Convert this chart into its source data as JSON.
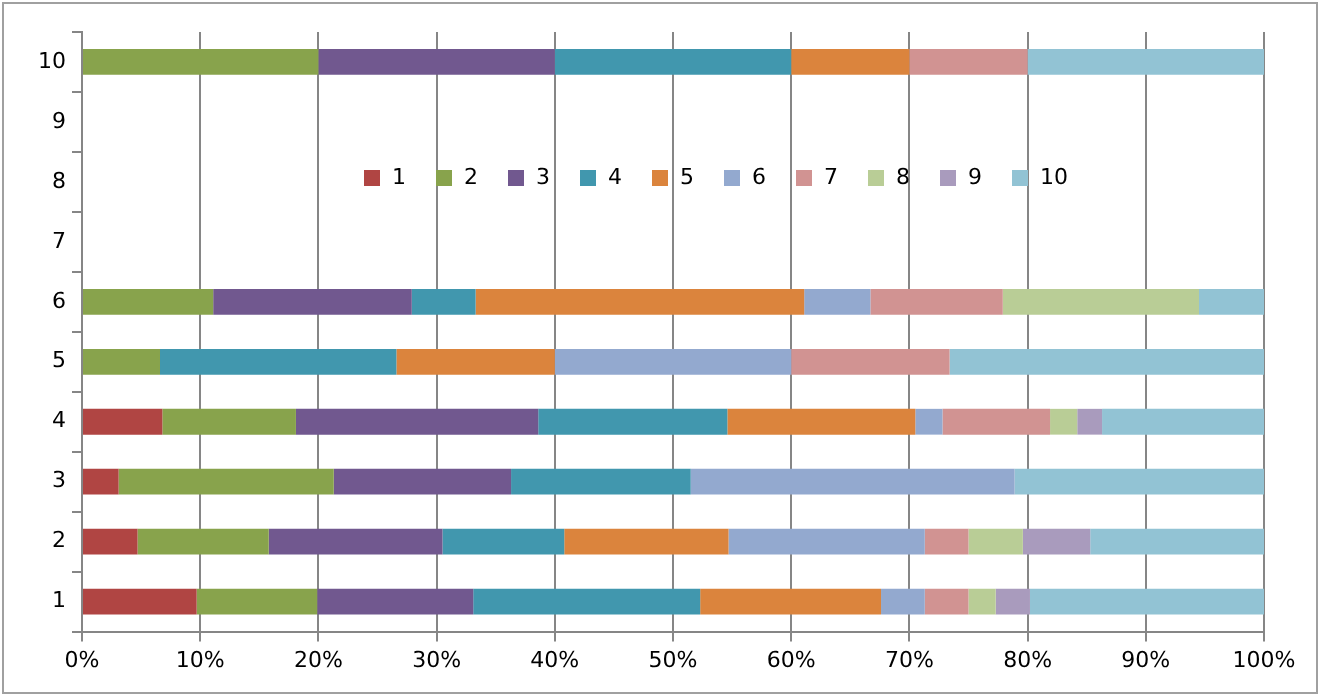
{
  "chart_data": {
    "type": "bar",
    "orientation": "horizontal",
    "stacked": true,
    "categories": [
      "10",
      "9",
      "8",
      "7",
      "6",
      "5",
      "4",
      "3",
      "2",
      "1"
    ],
    "series": [
      {
        "name": "1",
        "color": "#b04543",
        "values": [
          0,
          null,
          null,
          null,
          0,
          0,
          6.8,
          3.1,
          4.7,
          9.7
        ]
      },
      {
        "name": "2",
        "color": "#88a34c",
        "values": [
          20,
          null,
          null,
          null,
          11.1,
          6.6,
          11.3,
          18.2,
          11.1,
          10.2
        ]
      },
      {
        "name": "3",
        "color": "#71588f",
        "values": [
          20,
          null,
          null,
          null,
          16.8,
          0,
          20.5,
          15.0,
          14.7,
          13.2
        ]
      },
      {
        "name": "4",
        "color": "#4197ae",
        "values": [
          20,
          null,
          null,
          null,
          5.4,
          20.0,
          16.0,
          15.2,
          10.3,
          19.2
        ]
      },
      {
        "name": "5",
        "color": "#db843d",
        "values": [
          10,
          null,
          null,
          null,
          27.8,
          13.4,
          15.9,
          0,
          13.9,
          15.3
        ]
      },
      {
        "name": "6",
        "color": "#93a9cf",
        "values": [
          0,
          null,
          null,
          null,
          5.6,
          20.0,
          2.3,
          27.4,
          16.6,
          3.7
        ]
      },
      {
        "name": "7",
        "color": "#d19392",
        "values": [
          10,
          null,
          null,
          null,
          11.2,
          13.4,
          9.1,
          0,
          3.7,
          3.7
        ]
      },
      {
        "name": "8",
        "color": "#b9cd96",
        "values": [
          0,
          null,
          null,
          null,
          16.6,
          0,
          2.3,
          0,
          4.6,
          2.3
        ]
      },
      {
        "name": "9",
        "color": "#a99bbd",
        "values": [
          0,
          null,
          null,
          null,
          0,
          0,
          2.1,
          0,
          5.7,
          2.9
        ]
      },
      {
        "name": "10",
        "color": "#92c3d4",
        "values": [
          20,
          null,
          null,
          null,
          5.5,
          26.6,
          13.7,
          21.1,
          14.7,
          19.8
        ]
      }
    ],
    "xlim": [
      0,
      100
    ],
    "xticks": [
      {
        "value": 0,
        "label": "0%"
      },
      {
        "value": 10,
        "label": "10%"
      },
      {
        "value": 20,
        "label": "20%"
      },
      {
        "value": 30,
        "label": "30%"
      },
      {
        "value": 40,
        "label": "40%"
      },
      {
        "value": 50,
        "label": "50%"
      },
      {
        "value": 60,
        "label": "60%"
      },
      {
        "value": 70,
        "label": "70%"
      },
      {
        "value": 80,
        "label": "80%"
      },
      {
        "value": 90,
        "label": "90%"
      },
      {
        "value": 100,
        "label": "100%"
      }
    ],
    "grid": "x",
    "legend": "top"
  }
}
